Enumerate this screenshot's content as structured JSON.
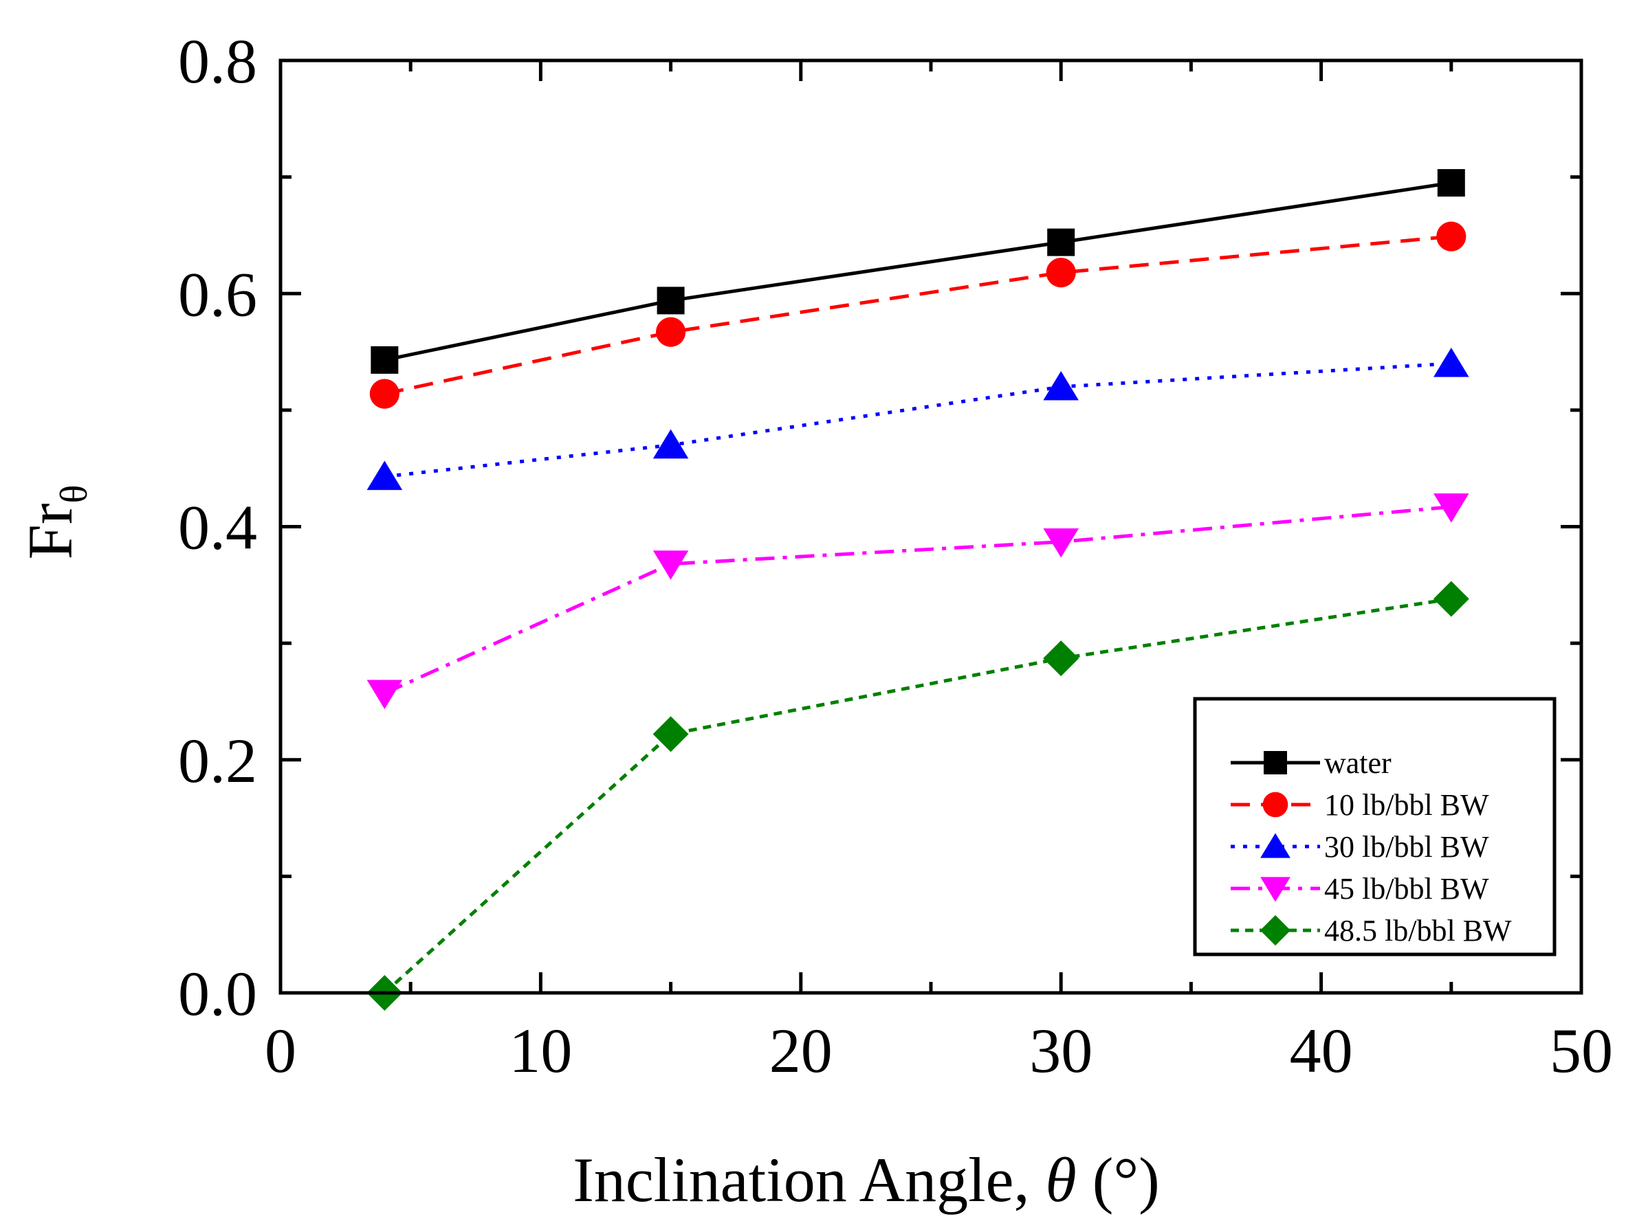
{
  "chart_data": {
    "type": "line",
    "title": "",
    "xlabel": {
      "main": "Inclination Angle, ",
      "symbol": "θ",
      "unit": " (°)"
    },
    "ylabel": {
      "main": "Fr",
      "subscript": "θ"
    },
    "xlim": [
      0,
      50
    ],
    "ylim": [
      0.0,
      0.8
    ],
    "x_ticks": [
      0,
      10,
      20,
      30,
      40,
      50
    ],
    "x_tick_labels": [
      "0",
      "10",
      "20",
      "30",
      "40",
      "50"
    ],
    "x_minor_ticks": [
      5,
      15,
      25,
      35,
      45
    ],
    "y_ticks": [
      0.0,
      0.2,
      0.4,
      0.6,
      0.8
    ],
    "y_tick_labels": [
      "0.0",
      "0.2",
      "0.4",
      "0.6",
      "0.8"
    ],
    "y_minor_ticks": [
      0.1,
      0.3,
      0.5,
      0.7
    ],
    "grid": false,
    "legend_position": "bottom-right",
    "x": [
      4,
      15,
      30,
      45
    ],
    "series": [
      {
        "name": "water",
        "values": [
          0.543,
          0.594,
          0.644,
          0.695
        ],
        "color": "#000000",
        "marker": "square",
        "line_style": "solid"
      },
      {
        "name": "10 lb/bbl BW",
        "values": [
          0.514,
          0.567,
          0.618,
          0.649
        ],
        "color": "#ff0000",
        "marker": "circle",
        "line_style": "dash"
      },
      {
        "name": "30 lb/bbl BW",
        "values": [
          0.443,
          0.47,
          0.52,
          0.54
        ],
        "color": "#0000ff",
        "marker": "triangle-up",
        "line_style": "dot"
      },
      {
        "name": "45 lb/bbl BW",
        "values": [
          0.257,
          0.368,
          0.387,
          0.417
        ],
        "color": "#ff00ff",
        "marker": "triangle-down",
        "line_style": "dashdot"
      },
      {
        "name": "48.5 lb/bbl BW",
        "values": [
          0.0,
          0.222,
          0.287,
          0.338
        ],
        "color": "#008000",
        "marker": "diamond",
        "line_style": "shortdash"
      }
    ]
  }
}
